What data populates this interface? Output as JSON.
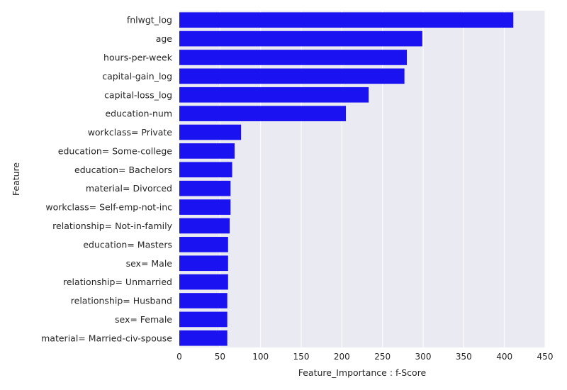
{
  "chart_data": {
    "type": "bar",
    "orientation": "horizontal",
    "title": "",
    "xlabel": "Feature_Importance : f-Score",
    "ylabel": "Feature",
    "xlim": [
      0,
      450
    ],
    "xticks": [
      "0",
      "50",
      "100",
      "150",
      "200",
      "250",
      "300",
      "350",
      "400",
      "450"
    ],
    "grid": true,
    "bar_color": "#1a12f0",
    "background_color": "#eaeaf2",
    "categories": [
      "fnlwgt_log",
      "age",
      "hours-per-week",
      "capital-gain_log",
      "capital-loss_log",
      "education-num",
      "workclass= Private",
      "education= Some-college",
      "education= Bachelors",
      "material= Divorced",
      "workclass= Self-emp-not-inc",
      "relationship= Not-in-family",
      "education= Masters",
      "sex= Male",
      "relationship= Unmarried",
      "relationship= Husband",
      "sex= Female",
      "material= Married-civ-spouse"
    ],
    "values": [
      411,
      299,
      280,
      277,
      233,
      205,
      76,
      68,
      65,
      63,
      63,
      62,
      60,
      60,
      60,
      59,
      59,
      59
    ]
  }
}
